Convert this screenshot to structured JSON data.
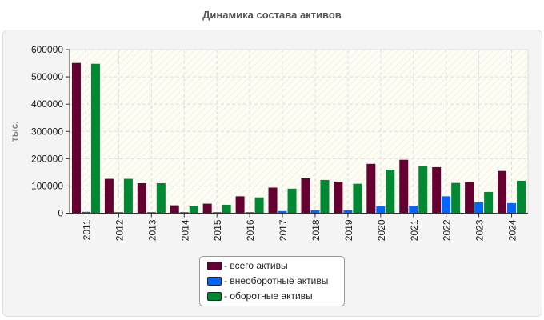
{
  "chart_data": {
    "type": "bar",
    "title": "Динамика состава активов",
    "ylabel": "тыс.",
    "xlabel": "",
    "ylim": [
      0,
      600000
    ],
    "yticks": [
      "0",
      "100000",
      "200000",
      "300000",
      "400000",
      "500000",
      "600000"
    ],
    "grid": true,
    "legend_position": "bottom",
    "categories": [
      "2011",
      "2012",
      "2013",
      "2014",
      "2015",
      "2016",
      "2017",
      "2018",
      "2019",
      "2020",
      "2021",
      "2022",
      "2023",
      "2024"
    ],
    "series": [
      {
        "name": "- всего активы",
        "color": "#660033",
        "values": [
          551000,
          126000,
          110000,
          29000,
          35000,
          62000,
          94000,
          128000,
          116000,
          181000,
          196000,
          169000,
          114000,
          155000
        ]
      },
      {
        "name": "- внеоборотные активы",
        "color": "#0066ff",
        "values": [
          5000,
          4000,
          4000,
          4000,
          4000,
          4000,
          8000,
          11000,
          11000,
          25000,
          28000,
          62000,
          40000,
          37000
        ]
      },
      {
        "name": "- оборотные активы",
        "color": "#008833",
        "values": [
          548000,
          126000,
          110000,
          25000,
          31000,
          58000,
          90000,
          122000,
          108000,
          160000,
          172000,
          111000,
          78000,
          119000
        ]
      }
    ]
  }
}
